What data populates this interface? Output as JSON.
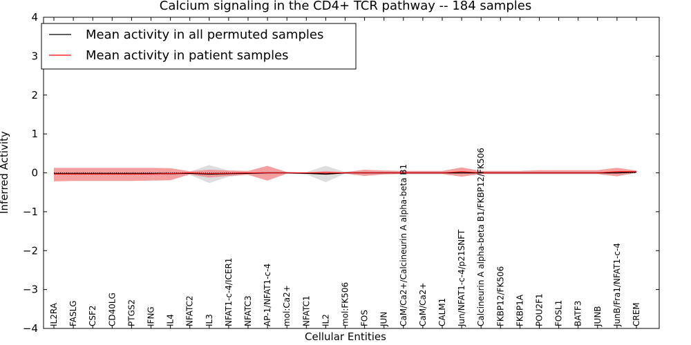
{
  "chart_data": {
    "type": "line",
    "title": "Calcium signaling in the CD4+ TCR pathway -- 184 samples",
    "xlabel": "Cellular Entities",
    "ylabel": "Inferred Activity",
    "ylim": [
      -4,
      4
    ],
    "yticks": [
      -4,
      -3,
      -2,
      -1,
      0,
      1,
      2,
      3,
      4
    ],
    "ytick_labels": [
      "−4",
      "−3",
      "−2",
      "−1",
      "0",
      "1",
      "2",
      "3",
      "4"
    ],
    "legend_position": "top-left",
    "categories": [
      "IL2RA",
      "FASLG",
      "CSF2",
      "CD40LG",
      "PTGS2",
      "IFNG",
      "IL4",
      "NFATC2",
      "IL3",
      "NFAT1-c-4/ICER1",
      "NFATC3",
      "AP-1/NFAT1-c-4",
      "mol:Ca2+",
      "NFATC1",
      "IL2",
      "mol:FK506",
      "FOS",
      "JUN",
      "CaM/Ca2+/Calcineurin A alpha-beta B1",
      "CaM/Ca2+",
      "CALM1",
      "Jun/NFAT1-c-4/p21SNFT",
      "Calcineurin A alpha-beta B1/FKBP12/FK506",
      "FKBP12/FK506",
      "FKBP1A",
      "POU2F1",
      "FOSL1",
      "BATF3",
      "JUNB",
      "JunB/Fra1/NFAT1-c-4",
      "CREM"
    ],
    "series": [
      {
        "name": "Mean activity in all permuted samples",
        "color": "#000000",
        "values": [
          -0.02,
          -0.02,
          -0.02,
          -0.02,
          -0.02,
          -0.02,
          -0.02,
          -0.01,
          -0.03,
          -0.02,
          -0.01,
          0.0,
          0.0,
          -0.01,
          -0.03,
          0.0,
          0.0,
          0.0,
          0.0,
          0.0,
          0.0,
          0.0,
          0.0,
          0.0,
          0.0,
          0.0,
          0.0,
          0.0,
          0.0,
          0.0,
          0.02
        ],
        "band_upper": [
          0.02,
          0.02,
          0.02,
          0.02,
          0.02,
          0.02,
          0.02,
          0.03,
          0.2,
          0.06,
          0.02,
          0.02,
          0.02,
          0.02,
          0.18,
          0.02,
          0.02,
          0.02,
          0.02,
          0.02,
          0.02,
          0.02,
          0.02,
          0.02,
          0.02,
          0.02,
          0.02,
          0.02,
          0.02,
          0.02,
          0.04
        ],
        "band_lower": [
          -0.06,
          -0.06,
          -0.06,
          -0.06,
          -0.06,
          -0.06,
          -0.06,
          -0.05,
          -0.26,
          -0.1,
          -0.04,
          -0.02,
          -0.02,
          -0.04,
          -0.24,
          -0.02,
          -0.02,
          -0.02,
          -0.02,
          -0.02,
          -0.02,
          -0.02,
          -0.02,
          -0.02,
          -0.02,
          -0.02,
          -0.02,
          -0.02,
          -0.02,
          -0.02,
          0.0
        ],
        "band_color": "#d9d9d9"
      },
      {
        "name": "Mean activity in patient samples",
        "color": "#ff0000",
        "values": [
          -0.03,
          -0.03,
          -0.03,
          -0.03,
          -0.03,
          -0.03,
          -0.02,
          0.0,
          -0.02,
          -0.01,
          0.0,
          0.0,
          0.0,
          0.0,
          0.0,
          0.0,
          0.0,
          0.0,
          0.0,
          0.0,
          0.0,
          0.03,
          0.0,
          0.0,
          0.0,
          0.0,
          0.0,
          0.0,
          0.0,
          0.03,
          0.03
        ],
        "band_upper": [
          0.13,
          0.13,
          0.13,
          0.13,
          0.13,
          0.13,
          0.12,
          0.04,
          0.08,
          0.06,
          0.05,
          0.18,
          0.02,
          0.01,
          0.05,
          0.02,
          0.08,
          0.06,
          0.05,
          0.05,
          0.05,
          0.14,
          0.05,
          0.05,
          0.05,
          0.07,
          0.07,
          0.07,
          0.07,
          0.13,
          0.06
        ],
        "band_lower": [
          -0.22,
          -0.21,
          -0.21,
          -0.21,
          -0.21,
          -0.2,
          -0.19,
          -0.04,
          -0.12,
          -0.08,
          -0.05,
          -0.2,
          -0.02,
          -0.02,
          -0.05,
          -0.02,
          -0.08,
          -0.04,
          -0.03,
          -0.03,
          -0.03,
          -0.1,
          -0.03,
          -0.03,
          -0.03,
          -0.03,
          -0.03,
          -0.03,
          -0.03,
          -0.09,
          0.0
        ],
        "band_color": "#f08080"
      }
    ]
  }
}
